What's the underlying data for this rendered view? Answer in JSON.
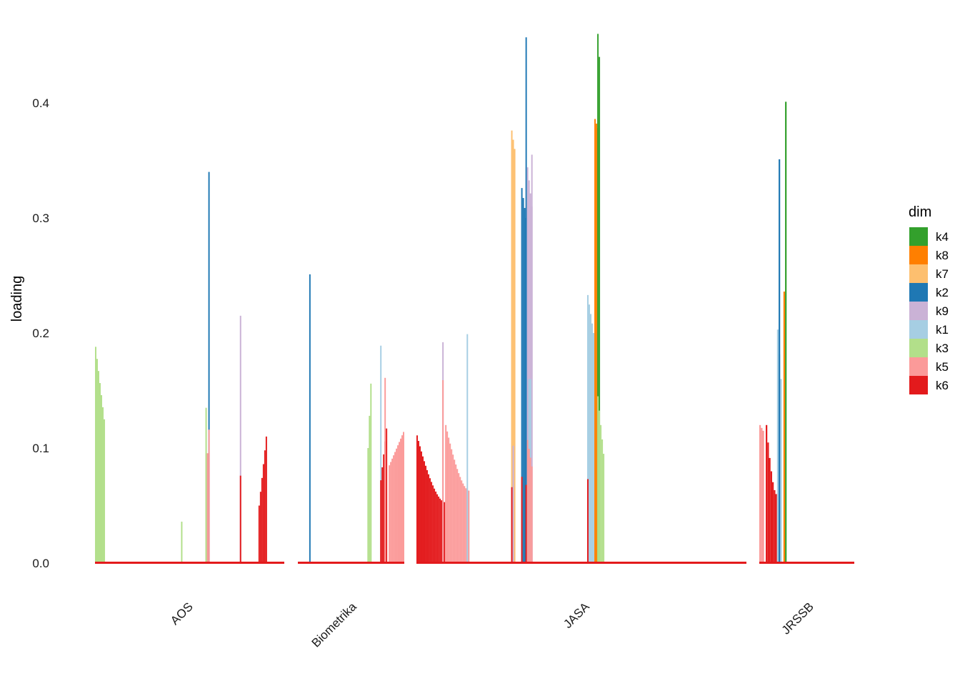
{
  "chart_data": {
    "type": "bar",
    "ylabel": "loading",
    "xlabel": "",
    "ylim": [
      0,
      0.46
    ],
    "yticks": [
      "0.0",
      "0.1",
      "0.2",
      "0.3",
      "0.4"
    ],
    "ytick_values": [
      0.0,
      0.1,
      0.2,
      0.3,
      0.4
    ],
    "grid": false,
    "legend": {
      "title": "dim",
      "placement": "right",
      "entries": [
        {
          "name": "k4",
          "color": "#33a02c"
        },
        {
          "name": "k8",
          "color": "#ff7f00"
        },
        {
          "name": "k7",
          "color": "#fdbf6f"
        },
        {
          "name": "k2",
          "color": "#1f78b4"
        },
        {
          "name": "k9",
          "color": "#cab2d6"
        },
        {
          "name": "k1",
          "color": "#a6cee3"
        },
        {
          "name": "k3",
          "color": "#b2df8a"
        },
        {
          "name": "k5",
          "color": "#fb9a99"
        },
        {
          "name": "k6",
          "color": "#e31a1c"
        }
      ]
    },
    "categories": [
      "AOS",
      "Biometrika",
      "JASA",
      "JRSSB"
    ],
    "panels": [
      {
        "name": "AOS",
        "n": 132,
        "segments": [
          {
            "dim": "k3",
            "start": 0,
            "n": 7,
            "from": 0.188,
            "to": 0.125,
            "decay": "linear"
          },
          {
            "dim": "k3",
            "start": 60,
            "n": 1,
            "from": 0.036,
            "to": 0.036
          },
          {
            "dim": "k5",
            "start": 77,
            "n": 3,
            "from": 0.095,
            "to": 0.096
          },
          {
            "dim": "k3",
            "start": 77,
            "n": 1,
            "from": 0.135,
            "to": 0.135
          },
          {
            "dim": "k2",
            "start": 79,
            "n": 1,
            "from": 0.34,
            "to": 0.34
          },
          {
            "dim": "k5",
            "start": 79,
            "n": 1,
            "from": 0.116,
            "to": 0.116
          },
          {
            "dim": "k9",
            "start": 101,
            "n": 1,
            "from": 0.215,
            "to": 0.215
          },
          {
            "dim": "k6",
            "start": 101,
            "n": 1,
            "from": 0.076,
            "to": 0.076
          },
          {
            "dim": "k6",
            "start": 114,
            "n": 6,
            "from": 0.05,
            "to": 0.11,
            "decay": "up"
          }
        ]
      },
      {
        "name": "Biometrika",
        "n": 75,
        "segments": [
          {
            "dim": "k2",
            "start": 8,
            "n": 1,
            "from": 0.251,
            "to": 0.251
          },
          {
            "dim": "k3",
            "start": 49,
            "n": 3,
            "from": 0.1,
            "to": 0.156,
            "decay": "up"
          },
          {
            "dim": "k1",
            "start": 58,
            "n": 1,
            "from": 0.189,
            "to": 0.189
          },
          {
            "dim": "k6",
            "start": 58,
            "n": 5,
            "from": 0.072,
            "to": 0.117,
            "decay": "up"
          },
          {
            "dim": "k5",
            "start": 61,
            "n": 1,
            "from": 0.161,
            "to": 0.161
          },
          {
            "dim": "k5",
            "start": 64,
            "n": 11,
            "from": 0.085,
            "to": 0.114,
            "decay": "up"
          }
        ]
      },
      {
        "name": "JASA",
        "n": 230,
        "segments": [
          {
            "dim": "k6",
            "start": 0,
            "n": 20,
            "from": 0.111,
            "to": 0.053,
            "decay": "convex"
          },
          {
            "dim": "k9",
            "start": 18,
            "n": 1,
            "from": 0.192,
            "to": 0.192
          },
          {
            "dim": "k5",
            "start": 18,
            "n": 1,
            "from": 0.159,
            "to": 0.159
          },
          {
            "dim": "k5",
            "start": 20,
            "n": 17,
            "from": 0.12,
            "to": 0.063,
            "decay": "convex"
          },
          {
            "dim": "k1",
            "start": 35,
            "n": 1,
            "from": 0.199,
            "to": 0.199
          },
          {
            "dim": "k7",
            "start": 66,
            "n": 3,
            "from": 0.376,
            "to": 0.36,
            "decay": "linear"
          },
          {
            "dim": "k9",
            "start": 67,
            "n": 1,
            "from": 0.102,
            "to": 0.102
          },
          {
            "dim": "k6",
            "start": 66,
            "n": 1,
            "from": 0.066,
            "to": 0.066
          },
          {
            "dim": "k2",
            "start": 73,
            "n": 4,
            "from": 0.326,
            "to": 0.3,
            "decay": "linear"
          },
          {
            "dim": "k2",
            "start": 76,
            "n": 1,
            "from": 0.457,
            "to": 0.457
          },
          {
            "dim": "k9",
            "start": 77,
            "n": 4,
            "from": 0.344,
            "to": 0.31,
            "decay": "linear"
          },
          {
            "dim": "k9",
            "start": 80,
            "n": 1,
            "from": 0.355,
            "to": 0.355
          },
          {
            "dim": "k6",
            "start": 73,
            "n": 1,
            "from": 0.075,
            "to": 0.075
          },
          {
            "dim": "k6",
            "start": 76,
            "n": 1,
            "from": 0.068,
            "to": 0.068
          },
          {
            "dim": "k1",
            "start": 78,
            "n": 2,
            "from": 0.16,
            "to": 0.16
          },
          {
            "dim": "k5",
            "start": 77,
            "n": 4,
            "from": 0.107,
            "to": 0.084,
            "decay": "linear"
          },
          {
            "dim": "k1",
            "start": 119,
            "n": 5,
            "from": 0.233,
            "to": 0.2,
            "decay": "linear"
          },
          {
            "dim": "k6",
            "start": 119,
            "n": 1,
            "from": 0.073,
            "to": 0.073
          },
          {
            "dim": "k8",
            "start": 124,
            "n": 3,
            "from": 0.386,
            "to": 0.378,
            "decay": "linear"
          },
          {
            "dim": "k4",
            "start": 126,
            "n": 2,
            "from": 0.46,
            "to": 0.44,
            "decay": "linear"
          },
          {
            "dim": "k3",
            "start": 126,
            "n": 5,
            "from": 0.145,
            "to": 0.095,
            "decay": "linear"
          }
        ]
      },
      {
        "name": "JRSSB",
        "n": 59,
        "segments": [
          {
            "dim": "k5",
            "start": 0,
            "n": 3,
            "from": 0.12,
            "to": 0.115,
            "decay": "linear"
          },
          {
            "dim": "k6",
            "start": 4,
            "n": 7,
            "from": 0.12,
            "to": 0.06,
            "decay": "convex"
          },
          {
            "dim": "k1",
            "start": 11,
            "n": 3,
            "from": 0.203,
            "to": 0.16,
            "decay": "linear"
          },
          {
            "dim": "k2",
            "start": 12,
            "n": 1,
            "from": 0.351,
            "to": 0.351
          },
          {
            "dim": "k8",
            "start": 15,
            "n": 1,
            "from": 0.236,
            "to": 0.236
          },
          {
            "dim": "k4",
            "start": 16,
            "n": 1,
            "from": 0.401,
            "to": 0.401
          }
        ]
      }
    ]
  }
}
